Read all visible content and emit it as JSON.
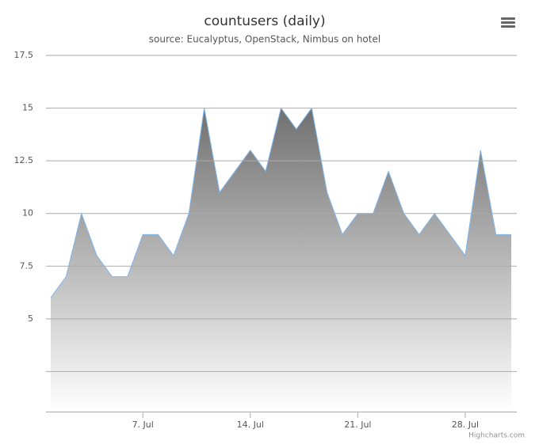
{
  "chart_data": {
    "type": "area",
    "title": "countusers (daily)",
    "subtitle": "source: Eucalyptus, OpenStack, Nimbus on hotel",
    "credits": "Highcharts.com",
    "x": [
      1,
      2,
      3,
      4,
      5,
      6,
      7,
      8,
      9,
      10,
      11,
      12,
      13,
      14,
      15,
      16,
      17,
      18,
      19,
      20,
      21,
      22,
      23,
      24,
      25,
      26,
      27,
      28,
      29,
      30,
      31
    ],
    "series": [
      {
        "color": "#7cb5ec",
        "values": [
          6,
          7,
          10,
          8,
          7,
          7,
          9,
          9,
          8,
          10,
          15,
          11,
          12,
          13,
          12,
          15,
          14,
          15,
          11,
          9,
          10,
          10,
          12,
          10,
          9,
          10,
          9,
          8,
          13,
          9,
          9
        ]
      }
    ],
    "xlim": [
      0.69,
      31.36
    ],
    "xticks": [
      {
        "value": 7,
        "label": "7. Jul"
      },
      {
        "value": 14,
        "label": "14. Jul"
      },
      {
        "value": 21,
        "label": "21. Jul"
      },
      {
        "value": 28,
        "label": "28. Jul"
      }
    ],
    "ylim": [
      0.6,
      17.5
    ],
    "yticks": [
      5,
      7.5,
      10,
      12.5,
      15,
      17.5
    ],
    "ygrid": [
      2.5,
      5,
      7.5,
      10,
      12.5,
      15,
      17.5
    ],
    "grid": true
  }
}
